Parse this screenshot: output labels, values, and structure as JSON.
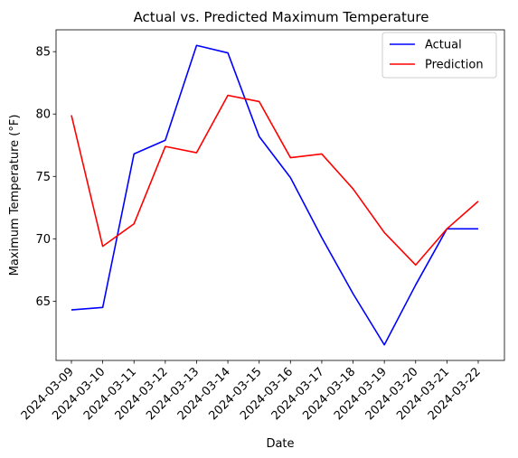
{
  "chart_data": {
    "type": "line",
    "title": "Actual vs. Predicted Maximum Temperature",
    "xlabel": "Date",
    "ylabel": "Maximum Temperature (°F)",
    "x": [
      "2024-03-09",
      "2024-03-10",
      "2024-03-11",
      "2024-03-12",
      "2024-03-13",
      "2024-03-14",
      "2024-03-15",
      "2024-03-16",
      "2024-03-17",
      "2024-03-18",
      "2024-03-19",
      "2024-03-20",
      "2024-03-21",
      "2024-03-22"
    ],
    "yticks": [
      65,
      70,
      75,
      80,
      85
    ],
    "ylim": [
      60.25,
      86.75
    ],
    "grid": false,
    "legend_position": "top-right",
    "series": [
      {
        "name": "Actual",
        "color": "#0000ff",
        "values": [
          64.3,
          64.5,
          76.8,
          77.9,
          85.5,
          84.9,
          78.2,
          74.9,
          70.1,
          65.6,
          61.5,
          66.3,
          70.8,
          70.8
        ]
      },
      {
        "name": "Prediction",
        "color": "#ff0000",
        "values": [
          79.9,
          69.4,
          71.2,
          77.4,
          76.9,
          81.5,
          81.0,
          76.5,
          76.8,
          74.0,
          70.5,
          67.9,
          70.8,
          73.0
        ]
      }
    ]
  }
}
